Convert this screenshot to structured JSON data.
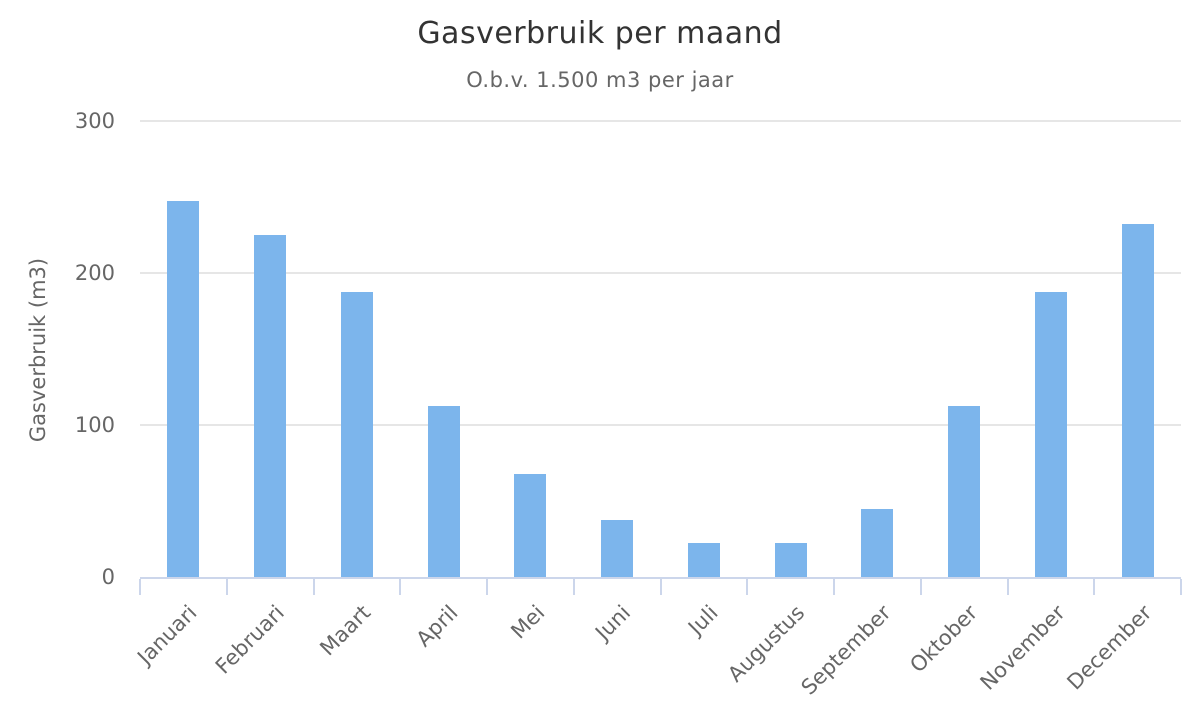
{
  "chart_data": {
    "type": "bar",
    "title": "Gasverbruik per maand",
    "subtitle": "O.b.v. 1.500 m3 per jaar",
    "categories": [
      "Januari",
      "Februari",
      "Maart",
      "April",
      "Mei",
      "Juni",
      "Juli",
      "Augustus",
      "September",
      "Oktober",
      "November",
      "December"
    ],
    "values": [
      247.5,
      225,
      187.5,
      112.5,
      67.5,
      37.5,
      22.5,
      22.5,
      45,
      112.5,
      187.5,
      232.5
    ],
    "xlabel": "",
    "ylabel": "Gasverbruik (m3)",
    "ylim": [
      0,
      300
    ],
    "yticks": [
      0,
      100,
      200,
      300
    ],
    "grid": true,
    "legend_position": "none",
    "bar_color": "#7cb5ec",
    "gridline_color": "#e6e6e6",
    "axis_line_color": "#ccd6eb",
    "title_color": "#333333",
    "label_color": "#666666"
  }
}
